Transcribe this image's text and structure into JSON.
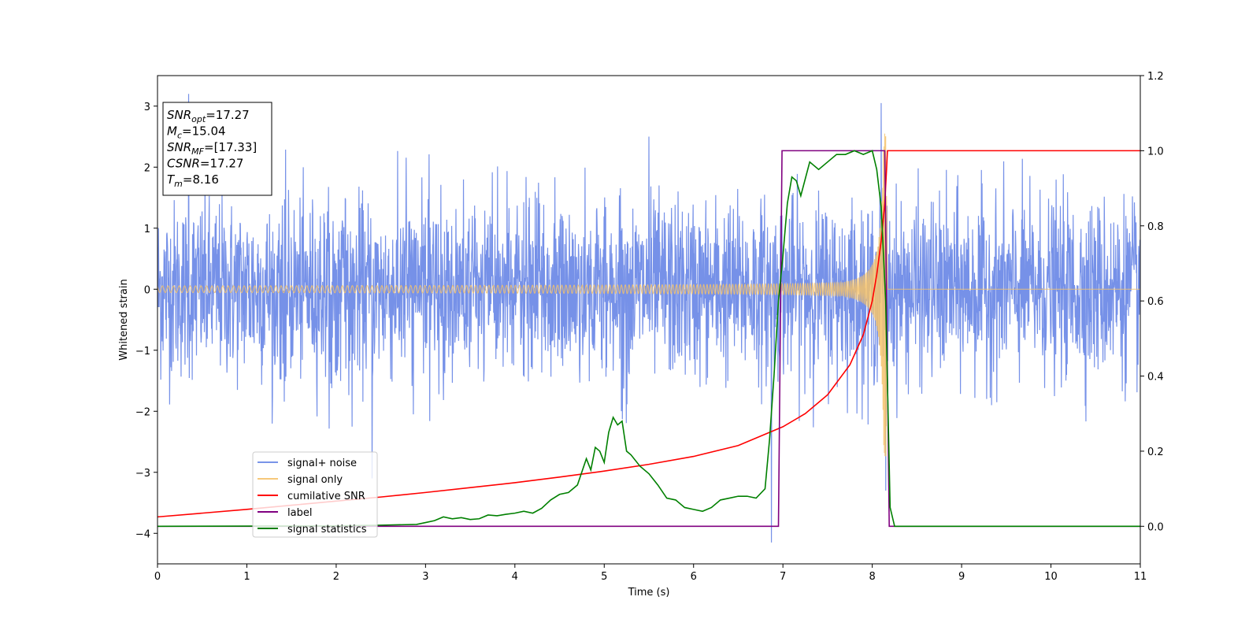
{
  "chart_data": {
    "type": "line",
    "title": "",
    "xlabel": "Time (s)",
    "ylabel": "Whitened strain",
    "y2label": "",
    "xlim": [
      0,
      11
    ],
    "ylim": [
      -4.5,
      3.5
    ],
    "y2lim": [
      -0.1,
      1.2
    ],
    "x_ticks": [
      0,
      1,
      2,
      3,
      4,
      5,
      6,
      7,
      8,
      9,
      10,
      11
    ],
    "y_ticks": [
      -4,
      -3,
      -2,
      -1,
      0,
      1,
      2,
      3
    ],
    "y2_ticks": [
      0.0,
      0.2,
      0.4,
      0.6,
      0.8,
      1.0,
      1.2
    ],
    "grid": false,
    "legend_position": "lower-left",
    "annotation": {
      "lines": [
        {
          "base": "SNR",
          "sub": "opt",
          "value": "=17.27"
        },
        {
          "base": "M",
          "sub": "c",
          "value": "=15.04"
        },
        {
          "base": "SNR",
          "sub": "MF",
          "value": "=[17.33]"
        },
        {
          "base": "CSNR",
          "sub": "",
          "value": "=17.27"
        },
        {
          "base": "T",
          "sub": "m",
          "value": "=8.16"
        }
      ]
    },
    "series": [
      {
        "name": "signal+ noise",
        "color": "#6a88e6",
        "axis": "left",
        "kind": "noise",
        "amplitude_envelope": 2.3,
        "extremes": [
          [
            0.35,
            3.2
          ],
          [
            2.4,
            -3.1
          ],
          [
            6.87,
            -4.15
          ],
          [
            8.1,
            3.05
          ],
          [
            8.15,
            -3.3
          ],
          [
            5.5,
            2.5
          ]
        ]
      },
      {
        "name": "signal only",
        "color": "#f5c26b",
        "axis": "left",
        "kind": "chirp",
        "merger_time": 8.16,
        "peak_amplitude": 2.75
      },
      {
        "name": "cumilative SNR",
        "color": "#ff0000",
        "axis": "right",
        "x": [
          0,
          0.5,
          1,
          1.5,
          2,
          2.5,
          3,
          3.5,
          4,
          4.5,
          5,
          5.5,
          6,
          6.5,
          7,
          7.25,
          7.5,
          7.75,
          7.9,
          8.0,
          8.05,
          8.1,
          8.14,
          8.16,
          8.17,
          11
        ],
        "y": [
          0.025,
          0.035,
          0.045,
          0.056,
          0.067,
          0.078,
          0.09,
          0.103,
          0.116,
          0.131,
          0.147,
          0.165,
          0.186,
          0.215,
          0.265,
          0.3,
          0.35,
          0.43,
          0.51,
          0.6,
          0.67,
          0.76,
          0.86,
          0.95,
          1.0,
          1.0
        ]
      },
      {
        "name": "label",
        "color": "#800080",
        "axis": "right",
        "x": [
          0,
          6.95,
          6.99,
          8.14,
          8.19,
          11
        ],
        "y": [
          0.0,
          0.0,
          1.0,
          1.0,
          0.0,
          0.0
        ]
      },
      {
        "name": "signal statistics",
        "color": "#008000",
        "axis": "right",
        "x": [
          0,
          2.0,
          2.5,
          2.9,
          3.0,
          3.1,
          3.2,
          3.3,
          3.4,
          3.5,
          3.6,
          3.7,
          3.8,
          3.9,
          4.0,
          4.1,
          4.2,
          4.3,
          4.4,
          4.5,
          4.6,
          4.7,
          4.8,
          4.85,
          4.9,
          4.95,
          5.0,
          5.05,
          5.1,
          5.15,
          5.2,
          5.25,
          5.3,
          5.4,
          5.5,
          5.6,
          5.7,
          5.8,
          5.9,
          6.0,
          6.1,
          6.2,
          6.3,
          6.4,
          6.5,
          6.6,
          6.7,
          6.8,
          6.85,
          6.9,
          6.95,
          7.0,
          7.05,
          7.1,
          7.15,
          7.2,
          7.3,
          7.4,
          7.5,
          7.6,
          7.7,
          7.8,
          7.9,
          8.0,
          8.05,
          8.1,
          8.15,
          8.2,
          8.25,
          11
        ],
        "y": [
          0.0,
          0.001,
          0.003,
          0.005,
          0.01,
          0.015,
          0.025,
          0.02,
          0.023,
          0.018,
          0.02,
          0.03,
          0.028,
          0.032,
          0.035,
          0.04,
          0.035,
          0.048,
          0.07,
          0.085,
          0.09,
          0.11,
          0.18,
          0.15,
          0.21,
          0.2,
          0.17,
          0.25,
          0.29,
          0.27,
          0.28,
          0.2,
          0.19,
          0.16,
          0.14,
          0.11,
          0.075,
          0.07,
          0.05,
          0.045,
          0.04,
          0.05,
          0.07,
          0.075,
          0.08,
          0.08,
          0.075,
          0.1,
          0.23,
          0.4,
          0.6,
          0.72,
          0.86,
          0.93,
          0.92,
          0.88,
          0.97,
          0.95,
          0.97,
          0.99,
          0.99,
          1.0,
          0.99,
          1.0,
          0.95,
          0.85,
          0.6,
          0.05,
          0.0,
          0.0
        ]
      }
    ]
  }
}
